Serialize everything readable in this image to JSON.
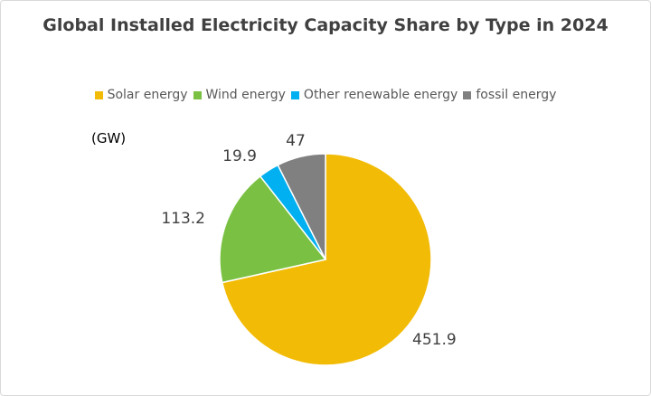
{
  "chart_data": {
    "type": "pie",
    "title": "Global Installed Electricity Capacity Share by Type in 2024",
    "unit_label": "(GW)",
    "legend_position": "top",
    "categories": [
      "Solar energy",
      "Wind energy",
      "Other renewable energy",
      "fossil energy"
    ],
    "values": [
      451.9,
      113.2,
      19.9,
      47
    ],
    "value_labels": [
      "451.9",
      "113.2",
      "19.9",
      "47"
    ],
    "colors": [
      "#f2bb05",
      "#7ac143",
      "#00b0f0",
      "#808080"
    ],
    "start_angle_deg": 0,
    "direction": "clockwise"
  }
}
